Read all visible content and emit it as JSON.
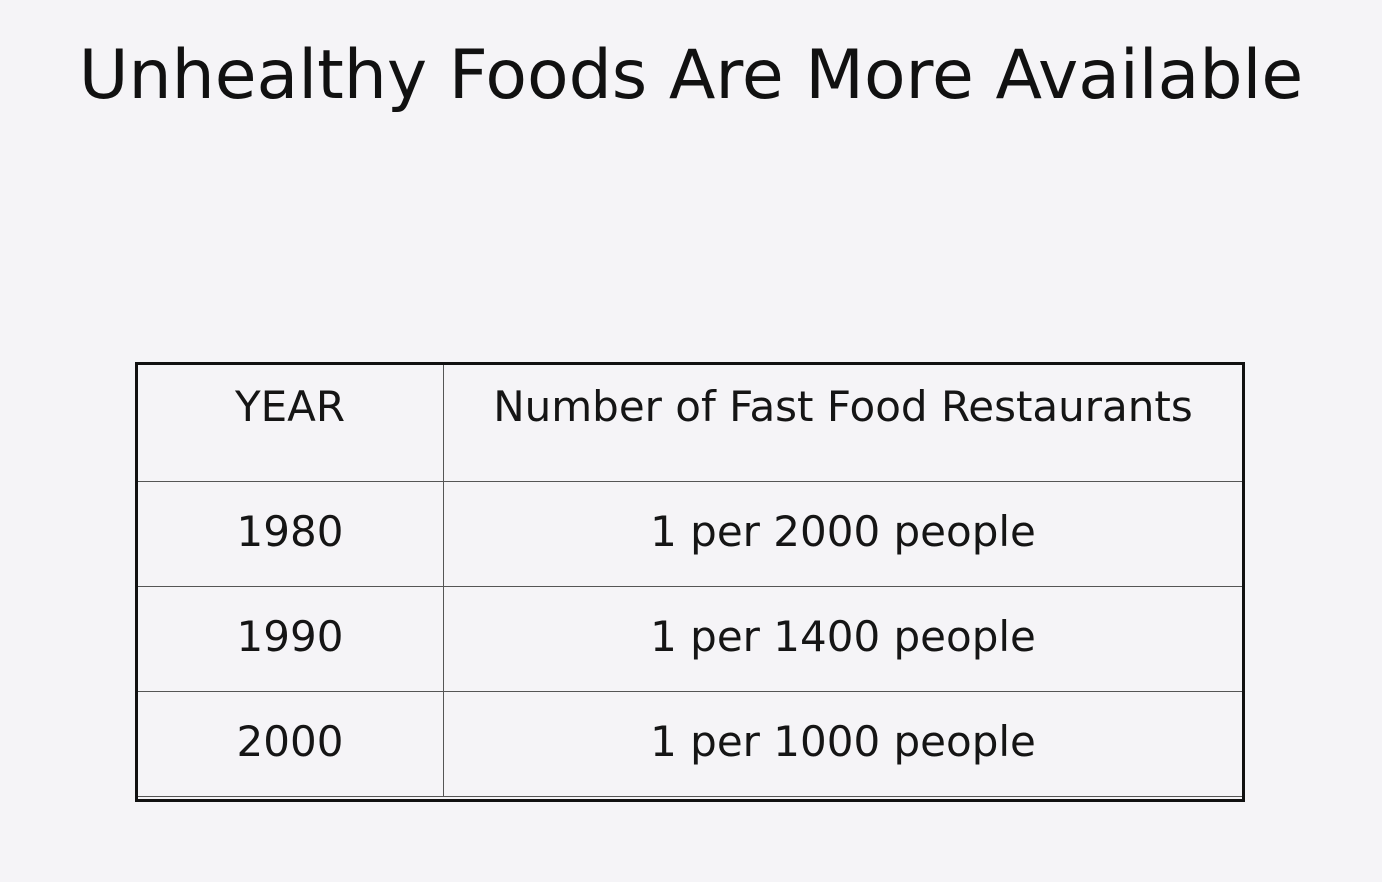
{
  "slide": {
    "title": "Unhealthy Foods Are More Available"
  },
  "table": {
    "columns": [
      "YEAR",
      "Number of Fast Food Restaurants"
    ],
    "rows": [
      [
        "1980",
        "1 per 2000 people"
      ],
      [
        "1990",
        "1 per 1400 people"
      ],
      [
        "2000",
        "1 per 1000 people"
      ]
    ]
  }
}
